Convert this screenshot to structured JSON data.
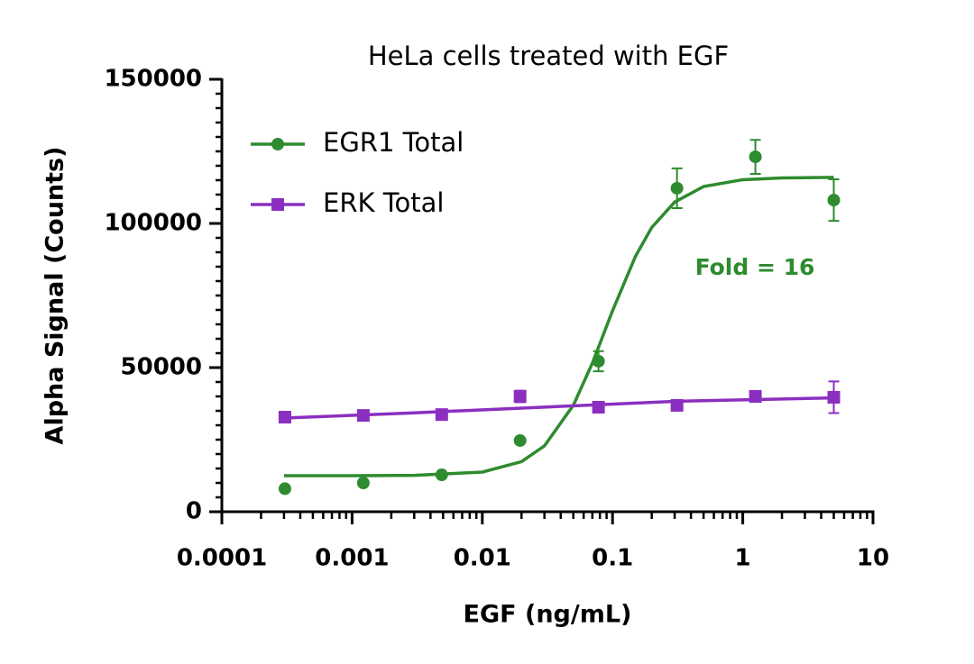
{
  "chart_data": {
    "type": "line",
    "title": "HeLa cells treated with EGF",
    "xlabel": "EGF (ng/mL)",
    "ylabel": "Alpha Signal (Counts)",
    "xscale": "log",
    "xlim": [
      0.0001,
      10
    ],
    "xticks": [
      0.0001,
      0.001,
      0.01,
      0.1,
      1,
      10
    ],
    "ylim": [
      0,
      150000
    ],
    "yticks": [
      0,
      50000,
      100000,
      150000
    ],
    "legend": "upper left",
    "annotation": {
      "text": "Fold = 16",
      "color": "#2e8b2e"
    },
    "x": [
      0.000305,
      0.00122,
      0.00488,
      0.0195,
      0.078,
      0.3125,
      1.25,
      5
    ],
    "series": [
      {
        "name": "EGR1 Total",
        "color": "#2e8b2e",
        "marker": "circle",
        "values": [
          8000,
          10000,
          12800,
          24700,
          52200,
          112200,
          123100,
          108100
        ],
        "errors": [
          null,
          null,
          null,
          null,
          3500,
          6900,
          5900,
          7200
        ],
        "fit": {
          "x": [
            0.0003,
            0.001,
            0.003,
            0.01,
            0.02,
            0.03,
            0.05,
            0.07,
            0.1,
            0.15,
            0.2,
            0.3,
            0.5,
            1,
            2,
            5
          ],
          "values": [
            12500,
            12513,
            12615,
            13762,
            17375,
            22850,
            36930,
            51520,
            69710,
            88600,
            98600,
            107400,
            112800,
            115170,
            115790,
            115960
          ]
        }
      },
      {
        "name": "ERK Total",
        "color": "#8b2fc0",
        "marker": "square",
        "values": [
          32800,
          33400,
          33700,
          40000,
          36250,
          36900,
          40000,
          39700
        ],
        "errors": [
          null,
          null,
          null,
          2000,
          null,
          null,
          null,
          5500
        ],
        "fit": {
          "x": [
            0.0003,
            0.003,
            0.03,
            0.3,
            5
          ],
          "values": [
            32500,
            34300,
            36300,
            38300,
            39500
          ]
        }
      }
    ]
  }
}
